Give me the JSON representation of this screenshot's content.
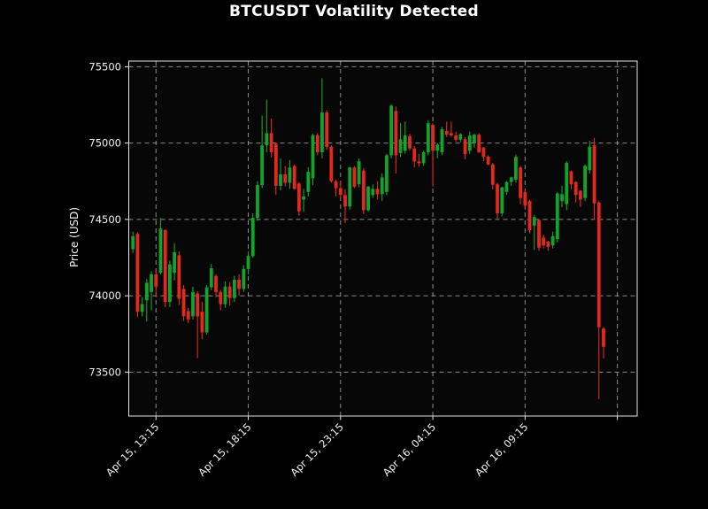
{
  "chart_data": {
    "type": "candlestick",
    "title": "BTCUSDT Volatility Detected",
    "ylabel": "Price (USD)",
    "xlabel": "",
    "grid": true,
    "legend_position": "none",
    "background_color": "#000000",
    "plot_background": "#070707",
    "text_color": "#f2f2f2",
    "grid_color": "#9a9a9a",
    "spine_color": "#e6e6e6",
    "up_color": "#12a32a",
    "down_color": "#e3291d",
    "ylim": [
      73212,
      75537
    ],
    "xlim_slots": [
      -0.9,
      109.3
    ],
    "y_ticks": [
      73500,
      74000,
      74500,
      75000,
      75500
    ],
    "x_ticks": [
      {
        "slot": 5,
        "label": "Apr 15, 13:15"
      },
      {
        "slot": 25,
        "label": "Apr 15, 18:15"
      },
      {
        "slot": 45,
        "label": "Apr 15, 23:15"
      },
      {
        "slot": 65,
        "label": "Apr 16, 04:15"
      },
      {
        "slot": 85,
        "label": "Apr 16, 09:15"
      },
      {
        "slot": 105,
        "label": ""
      }
    ],
    "candles_format": [
      "open",
      "high",
      "low",
      "close"
    ],
    "candles": [
      [
        74305,
        74420,
        74280,
        74390
      ],
      [
        74405,
        74415,
        73860,
        73895
      ],
      [
        73895,
        73990,
        73865,
        73945
      ],
      [
        73970,
        74110,
        73830,
        74085
      ],
      [
        74025,
        74160,
        73905,
        74140
      ],
      [
        74140,
        74175,
        73990,
        74060
      ],
      [
        74150,
        74510,
        74140,
        74440
      ],
      [
        74430,
        74435,
        73925,
        73960
      ],
      [
        73960,
        74230,
        73925,
        74205
      ],
      [
        74150,
        74345,
        74100,
        74285
      ],
      [
        74265,
        74290,
        73940,
        73980
      ],
      [
        74045,
        74070,
        73835,
        73865
      ],
      [
        73900,
        73920,
        73820,
        73845
      ],
      [
        73865,
        74060,
        73845,
        74025
      ],
      [
        74015,
        74030,
        73592,
        73865
      ],
      [
        73895,
        73960,
        73715,
        73760
      ],
      [
        73760,
        74070,
        73745,
        74055
      ],
      [
        74055,
        74207,
        74035,
        74180
      ],
      [
        74130,
        74140,
        73990,
        74025
      ],
      [
        74025,
        74040,
        73905,
        73945
      ],
      [
        73945,
        74095,
        73920,
        74060
      ],
      [
        74060,
        74090,
        73935,
        73985
      ],
      [
        73985,
        74130,
        73960,
        74105
      ],
      [
        74105,
        74140,
        74000,
        74045
      ],
      [
        74045,
        74200,
        74025,
        74175
      ],
      [
        74175,
        74290,
        74140,
        74260
      ],
      [
        74260,
        74540,
        74250,
        74510
      ],
      [
        74510,
        74750,
        74490,
        74725
      ],
      [
        74725,
        75180,
        74705,
        74985
      ],
      [
        74985,
        75285,
        74940,
        75065
      ],
      [
        75065,
        75160,
        74905,
        74940
      ],
      [
        74995,
        75000,
        74660,
        74720
      ],
      [
        74720,
        74900,
        74690,
        74795
      ],
      [
        74795,
        74850,
        74716,
        74740
      ],
      [
        74740,
        74889,
        74700,
        74840
      ],
      [
        74850,
        74860,
        74695,
        74700
      ],
      [
        74735,
        74745,
        74524,
        74553
      ],
      [
        74630,
        74700,
        74550,
        74650
      ],
      [
        74680,
        74841,
        74650,
        74812
      ],
      [
        74770,
        75062,
        74726,
        75052
      ],
      [
        75052,
        75065,
        74920,
        74940
      ],
      [
        74940,
        75425,
        74900,
        75200
      ],
      [
        75200,
        75215,
        74955,
        74975
      ],
      [
        74975,
        74985,
        74740,
        74750
      ],
      [
        74750,
        74760,
        74650,
        74705
      ],
      [
        74705,
        74750,
        74640,
        74660
      ],
      [
        74660,
        74700,
        74475,
        74585
      ],
      [
        74585,
        74845,
        74565,
        74840
      ],
      [
        74840,
        74850,
        74705,
        74715
      ],
      [
        74730,
        74900,
        74710,
        74880
      ],
      [
        74820,
        74835,
        74534,
        74560
      ],
      [
        74560,
        74720,
        74550,
        74715
      ],
      [
        74660,
        74730,
        74640,
        74700
      ],
      [
        74700,
        74750,
        74629,
        74665
      ],
      [
        74665,
        74802,
        74620,
        74775
      ],
      [
        74680,
        74930,
        74660,
        74920
      ],
      [
        74920,
        75255,
        74900,
        75245
      ],
      [
        75210,
        75240,
        74800,
        74920
      ],
      [
        74935,
        75130,
        74910,
        75025
      ],
      [
        74950,
        75141,
        74930,
        75050
      ],
      [
        75045,
        75060,
        74950,
        74965
      ],
      [
        74965,
        74980,
        74840,
        74880
      ],
      [
        74880,
        74930,
        74845,
        74868
      ],
      [
        74868,
        74950,
        74850,
        74940
      ],
      [
        74940,
        75150,
        74920,
        75130
      ],
      [
        75120,
        75130,
        74715,
        74950
      ],
      [
        74950,
        75000,
        74900,
        74990
      ],
      [
        74940,
        75105,
        74920,
        75090
      ],
      [
        75080,
        75140,
        75040,
        75055
      ],
      [
        75065,
        75141,
        75040,
        75050
      ],
      [
        75050,
        75075,
        75010,
        75022
      ],
      [
        75022,
        75065,
        75005,
        75058
      ],
      [
        75025,
        75040,
        74895,
        74927
      ],
      [
        74950,
        75075,
        74930,
        75050
      ],
      [
        75000,
        75060,
        74970,
        75055
      ],
      [
        75055,
        75065,
        74935,
        74940
      ],
      [
        74970,
        74975,
        74880,
        74911
      ],
      [
        74911,
        74920,
        74855,
        74860
      ],
      [
        74860,
        74870,
        74698,
        74727
      ],
      [
        74730,
        74740,
        74505,
        74540
      ],
      [
        74540,
        74715,
        74520,
        74710
      ],
      [
        74680,
        74750,
        74660,
        74745
      ],
      [
        74745,
        74780,
        74720,
        74775
      ],
      [
        74760,
        74925,
        74740,
        74910
      ],
      [
        74840,
        74850,
        74600,
        74640
      ],
      [
        74680,
        74700,
        74563,
        74590
      ],
      [
        74620,
        74630,
        74409,
        74430
      ],
      [
        74460,
        74530,
        74300,
        74515
      ],
      [
        74495,
        74500,
        74294,
        74315
      ],
      [
        74380,
        74400,
        74310,
        74330
      ],
      [
        74355,
        74360,
        74294,
        74320
      ],
      [
        74330,
        74420,
        74310,
        74390
      ],
      [
        74370,
        74680,
        74350,
        74670
      ],
      [
        74620,
        74720,
        74580,
        74665
      ],
      [
        74600,
        74881,
        74560,
        74870
      ],
      [
        74815,
        74820,
        74698,
        74730
      ],
      [
        74745,
        74750,
        74611,
        74660
      ],
      [
        74688,
        74690,
        74582,
        74630
      ],
      [
        74640,
        74860,
        74620,
        74851
      ],
      [
        74822,
        75014,
        74800,
        74976
      ],
      [
        74986,
        75034,
        74496,
        74605
      ],
      [
        74611,
        74620,
        73323,
        73794
      ],
      [
        73785,
        73795,
        73589,
        73665
      ]
    ]
  }
}
